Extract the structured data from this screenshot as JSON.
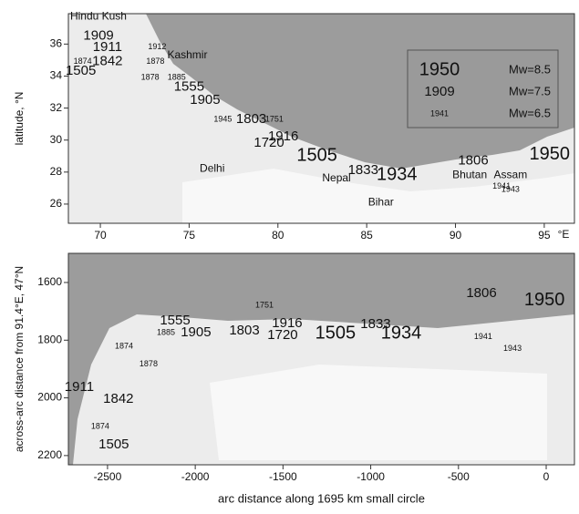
{
  "chart_data": [
    {
      "type": "map",
      "ylabel": "latitude, °N",
      "x_unit": "°E",
      "xlim": [
        68.2,
        96.7
      ],
      "ylim": [
        24.8,
        37.9
      ],
      "xticks": [
        70,
        75,
        80,
        85,
        90,
        95
      ],
      "yticks": [
        26,
        28,
        30,
        32,
        34,
        36
      ],
      "annotations": [
        {
          "text": "Hindu Kush",
          "x": 68.3,
          "y": 37.7
        },
        {
          "text": "Kashmir",
          "x": 74.9,
          "y": 35.3
        },
        {
          "text": "Delhi",
          "x": 76.3,
          "y": 28.2
        },
        {
          "text": "Nepal",
          "x": 83.3,
          "y": 27.6
        },
        {
          "text": "Bihar",
          "x": 85.8,
          "y": 26.1
        },
        {
          "text": "Bhutan",
          "x": 90.8,
          "y": 27.8
        },
        {
          "text": "Assam",
          "x": 93.1,
          "y": 27.8
        }
      ],
      "series": [
        {
          "name": "Mw=8.5",
          "legend_label": "1950",
          "points": [
            {
              "label": "1505",
              "x": 82.2,
              "y": 29.0
            },
            {
              "label": "1934",
              "x": 86.7,
              "y": 27.8
            },
            {
              "label": "1950",
              "x": 95.3,
              "y": 29.1
            }
          ]
        },
        {
          "name": "Mw=7.5",
          "legend_label": "1909",
          "points": [
            {
              "label": "1909",
              "x": 69.9,
              "y": 36.5
            },
            {
              "label": "1911",
              "x": 70.4,
              "y": 35.8
            },
            {
              "label": "1842",
              "x": 70.4,
              "y": 34.9
            },
            {
              "label": "1505",
              "x": 68.9,
              "y": 34.3
            },
            {
              "label": "1555",
              "x": 75.0,
              "y": 33.3
            },
            {
              "label": "1905",
              "x": 75.9,
              "y": 32.5
            },
            {
              "label": "1803",
              "x": 78.5,
              "y": 31.3
            },
            {
              "label": "1916",
              "x": 80.3,
              "y": 30.2
            },
            {
              "label": "1720",
              "x": 79.5,
              "y": 29.8
            },
            {
              "label": "1833",
              "x": 84.8,
              "y": 28.1
            },
            {
              "label": "1806",
              "x": 91.0,
              "y": 28.7
            }
          ]
        },
        {
          "name": "Mw=6.5",
          "legend_label": "1941",
          "points": [
            {
              "label": "1874",
              "x": 69.0,
              "y": 34.9
            },
            {
              "label": "1912",
              "x": 73.2,
              "y": 35.8
            },
            {
              "label": "1878",
              "x": 73.1,
              "y": 34.9
            },
            {
              "label": "1878",
              "x": 72.8,
              "y": 33.9
            },
            {
              "label": "1885",
              "x": 74.3,
              "y": 33.9
            },
            {
              "label": "1945",
              "x": 76.9,
              "y": 31.3
            },
            {
              "label": "1751",
              "x": 79.8,
              "y": 31.3
            },
            {
              "label": "1941",
              "x": 92.6,
              "y": 27.1
            },
            {
              "label": "1943",
              "x": 93.1,
              "y": 26.9
            }
          ]
        }
      ]
    },
    {
      "type": "map",
      "xlabel": "arc distance along 1695 km small circle",
      "ylabel": "across-arc distance from 91.4°E, 47°N",
      "xlim": [
        -2723,
        161
      ],
      "ylim": [
        1499,
        2232
      ],
      "y_inverted": true,
      "xticks": [
        -2500,
        -2000,
        -1500,
        -1000,
        -500,
        0
      ],
      "yticks": [
        1600,
        1800,
        2000,
        2200
      ],
      "series": [
        {
          "points": [
            {
              "label": "1950",
              "x": -10,
              "y": 1663
            },
            {
              "label": "1505",
              "x": -1201,
              "y": 1777
            },
            {
              "label": "1934",
              "x": -826,
              "y": 1777
            }
          ]
        },
        {
          "points": [
            {
              "label": "1806",
              "x": -369,
              "y": 1638
            },
            {
              "label": "1555",
              "x": -2115,
              "y": 1733
            },
            {
              "label": "1905",
              "x": -1996,
              "y": 1774
            },
            {
              "label": "1803",
              "x": -1720,
              "y": 1767
            },
            {
              "label": "1916",
              "x": -1476,
              "y": 1742
            },
            {
              "label": "1720",
              "x": -1502,
              "y": 1783
            },
            {
              "label": "1833",
              "x": -972,
              "y": 1745
            },
            {
              "label": "1911",
              "x": -2661,
              "y": 1963
            },
            {
              "label": "1842",
              "x": -2438,
              "y": 2004
            },
            {
              "label": "1505",
              "x": -2464,
              "y": 2162
            }
          ]
        },
        {
          "points": [
            {
              "label": "1751",
              "x": -1606,
              "y": 1679
            },
            {
              "label": "1885",
              "x": -2167,
              "y": 1774
            },
            {
              "label": "1941",
              "x": -359,
              "y": 1789
            },
            {
              "label": "1943",
              "x": -192,
              "y": 1830
            },
            {
              "label": "1878",
              "x": -2266,
              "y": 1884
            },
            {
              "label": "1874",
              "x": -2406,
              "y": 1821
            },
            {
              "label": "1874",
              "x": -2542,
              "y": 2099
            }
          ]
        }
      ]
    }
  ]
}
